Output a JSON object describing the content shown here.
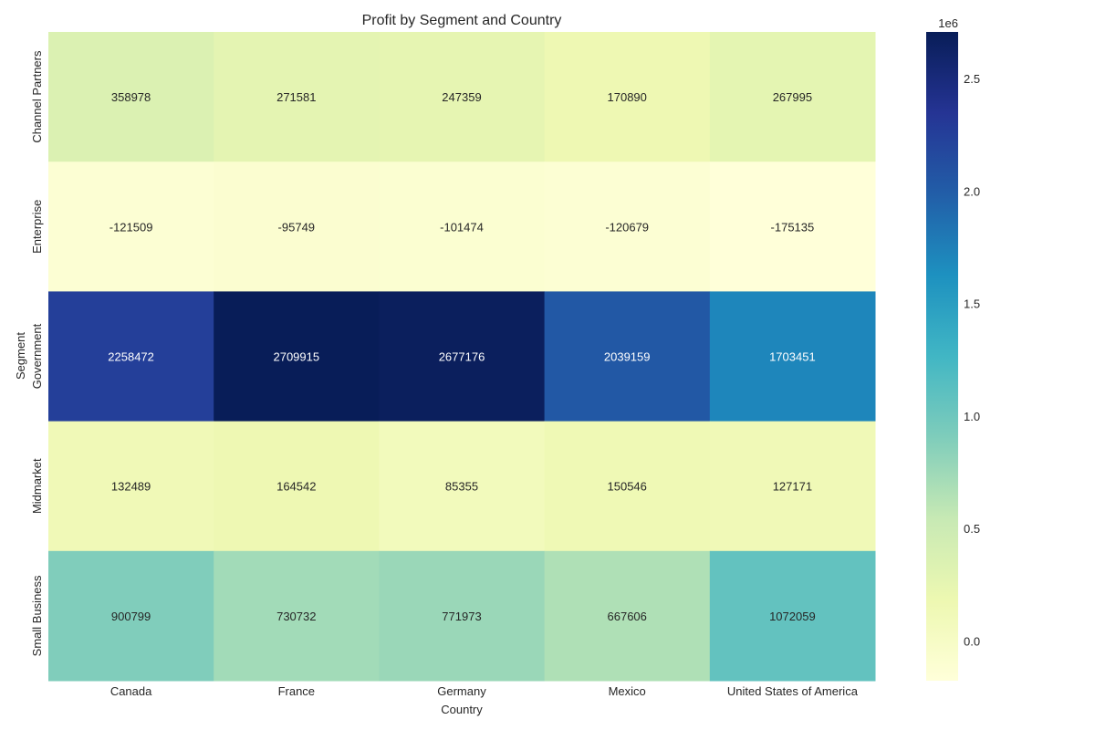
{
  "chart_data": {
    "type": "heatmap",
    "title": "Profit by Segment and Country",
    "xlabel": "Country",
    "ylabel": "Segment",
    "x_categories": [
      "Canada",
      "France",
      "Germany",
      "Mexico",
      "United States of America"
    ],
    "y_categories": [
      "Channel Partners",
      "Enterprise",
      "Government",
      "Midmarket",
      "Small Business"
    ],
    "values": [
      [
        358978,
        271581,
        247359,
        170890,
        267995
      ],
      [
        -121509,
        -95749,
        -101474,
        -120679,
        -175135
      ],
      [
        2258472,
        2709915,
        2677176,
        2039159,
        1703451
      ],
      [
        132489,
        164542,
        85355,
        150546,
        127171
      ],
      [
        900799,
        730732,
        771973,
        667606,
        1072059
      ]
    ],
    "colormap": "YlGnBu",
    "colorbar": {
      "min": -175135,
      "max": 2709915,
      "ticks": [
        0.0,
        0.5,
        1.0,
        1.5,
        2.0,
        2.5
      ],
      "tick_labels": [
        "0.0",
        "0.5",
        "1.0",
        "1.5",
        "2.0",
        "2.5"
      ],
      "scale_label": "1e6",
      "multiplier": 1000000
    },
    "colors": {
      "text_light": "#ffffff",
      "text_dark": "#262626",
      "axis_text": "#262626"
    }
  }
}
